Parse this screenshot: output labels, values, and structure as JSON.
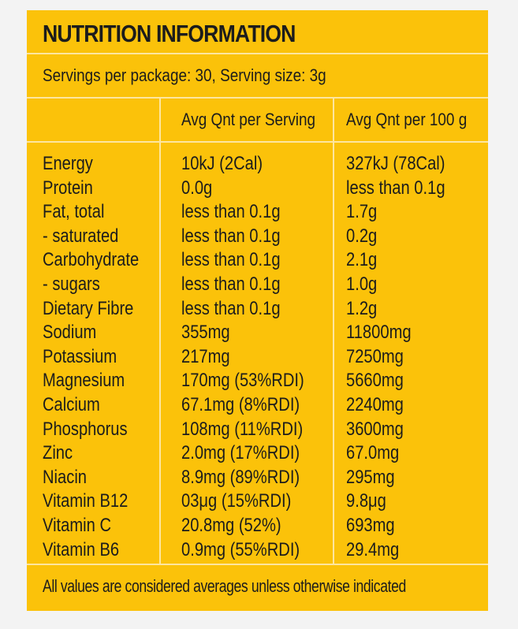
{
  "title": "NUTRITION INFORMATION",
  "serving_line": "Servings per package: 30, Serving size: 3g",
  "headers": {
    "nutrient": "",
    "per_serving": "Avg Qnt per Serving",
    "per_100g": "Avg Qnt per 100 g"
  },
  "rows": [
    {
      "name": "Energy",
      "serving": "10kJ (2Cal)",
      "per100": "327kJ (78Cal)"
    },
    {
      "name": "Protein",
      "serving": "0.0g",
      "per100": "less than 0.1g"
    },
    {
      "name": "Fat, total",
      "serving": "less than 0.1g",
      "per100": "1.7g"
    },
    {
      "name": " - saturated",
      "serving": "less than 0.1g",
      "per100": "0.2g"
    },
    {
      "name": "Carbohydrate",
      "serving": "less than 0.1g",
      "per100": "2.1g"
    },
    {
      "name": " - sugars",
      "serving": "less than 0.1g",
      "per100": "1.0g"
    },
    {
      "name": "Dietary Fibre",
      "serving": "less than 0.1g",
      "per100": "1.2g"
    },
    {
      "name": "Sodium",
      "serving": "355mg",
      "per100": "11800mg"
    },
    {
      "name": "Potassium",
      "serving": "217mg",
      "per100": "7250mg"
    },
    {
      "name": "Magnesium",
      "serving": "170mg (53%RDI)",
      "per100": "5660mg"
    },
    {
      "name": "Calcium",
      "serving": "67.1mg (8%RDI)",
      "per100": "2240mg"
    },
    {
      "name": "Phosphorus",
      "serving": "108mg (11%RDI)",
      "per100": "3600mg"
    },
    {
      "name": "Zinc",
      "serving": "2.0mg (17%RDI)",
      "per100": "67.0mg"
    },
    {
      "name": "Niacin",
      "serving": "8.9mg (89%RDI)",
      "per100": "295mg"
    },
    {
      "name": "Vitamin B12",
      "serving": "03μg (15%RDI)",
      "per100": "9.8μg"
    },
    {
      "name": "Vitamin C",
      "serving": "20.8mg (52%)",
      "per100": "693mg"
    },
    {
      "name": "Vitamin B6",
      "serving": "0.9mg (55%RDI)",
      "per100": "29.4mg"
    }
  ],
  "footer": "All values are considered averages unless otherwise indicated",
  "colors": {
    "panel": "#fbc20a",
    "divider": "#fde6a0",
    "background": "#f3f3f3",
    "text": "#1c1c1c"
  }
}
